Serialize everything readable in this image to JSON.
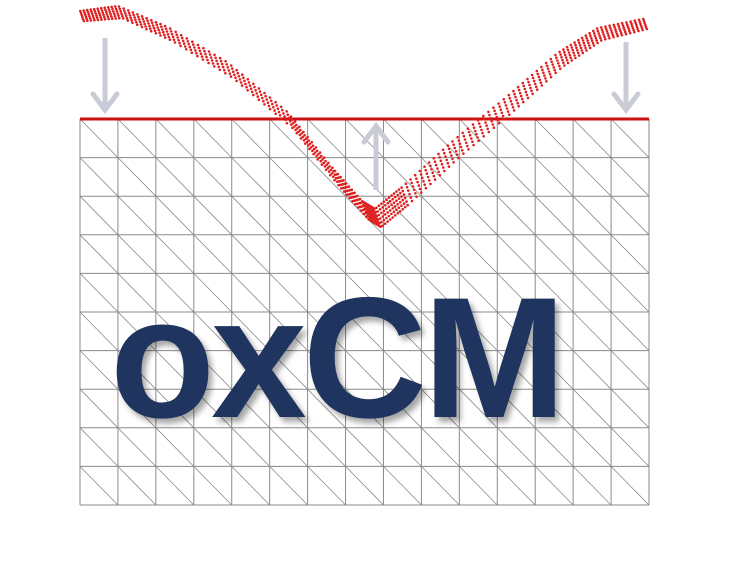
{
  "logo": {
    "text": "oxCM",
    "text_color": "#1f3560"
  },
  "colors": {
    "grid_line": "#8a8a8a",
    "surface_line": "#cc1111",
    "deformed_points": "#e02020",
    "arrow": "#c9ccd6"
  },
  "icons": [
    "arrow-down-icon",
    "arrow-up-icon",
    "arrow-down-icon"
  ]
}
